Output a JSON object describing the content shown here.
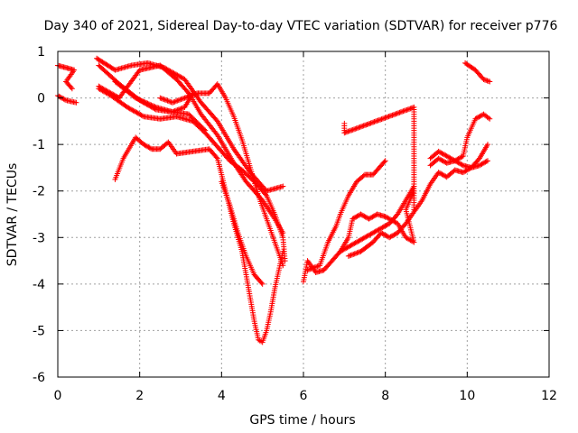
{
  "chart_data": {
    "type": "scatter",
    "title": "Day 340 of 2021, Sidereal Day-to-day VTEC variation (SDTVAR) for receiver p776",
    "xlabel": "GPS time / hours",
    "ylabel": "SDTVAR / TECUs",
    "xlim": [
      0,
      12
    ],
    "ylim": [
      -6,
      1
    ],
    "xticks": [
      0,
      2,
      4,
      6,
      8,
      10,
      12
    ],
    "yticks": [
      -6,
      -5,
      -4,
      -3,
      -2,
      -1,
      0,
      1
    ],
    "grid": true,
    "marker": "plus",
    "color": "#ff0000",
    "tracks": [
      [
        [
          0.0,
          0.7
        ],
        [
          0.2,
          0.65
        ],
        [
          0.4,
          0.6
        ],
        [
          0.2,
          0.35
        ],
        [
          0.35,
          0.2
        ]
      ],
      [
        [
          0.0,
          0.05
        ],
        [
          0.2,
          -0.05
        ],
        [
          0.45,
          -0.1
        ]
      ],
      [
        [
          0.95,
          0.85
        ],
        [
          1.4,
          0.6
        ],
        [
          1.8,
          0.7
        ],
        [
          2.2,
          0.75
        ],
        [
          2.6,
          0.65
        ],
        [
          3.1,
          0.4
        ],
        [
          3.5,
          -0.1
        ],
        [
          3.9,
          -0.5
        ],
        [
          4.3,
          -1.1
        ],
        [
          4.7,
          -1.6
        ],
        [
          5.1,
          -2.0
        ],
        [
          5.5,
          -1.9
        ]
      ],
      [
        [
          1.0,
          0.25
        ],
        [
          1.5,
          0.0
        ],
        [
          2.0,
          0.6
        ],
        [
          2.5,
          0.7
        ],
        [
          2.9,
          0.4
        ],
        [
          3.2,
          0.1
        ],
        [
          3.5,
          -0.35
        ],
        [
          3.9,
          -0.8
        ],
        [
          4.3,
          -1.4
        ],
        [
          4.6,
          -1.8
        ],
        [
          5.0,
          -2.2
        ],
        [
          5.3,
          -2.6
        ],
        [
          5.5,
          -2.9
        ]
      ],
      [
        [
          1.0,
          0.2
        ],
        [
          1.3,
          0.05
        ],
        [
          1.7,
          -0.2
        ],
        [
          2.1,
          -0.4
        ],
        [
          2.5,
          -0.45
        ],
        [
          2.9,
          -0.4
        ],
        [
          3.3,
          -0.5
        ],
        [
          3.6,
          -0.75
        ],
        [
          3.9,
          -1.05
        ],
        [
          4.2,
          -1.35
        ],
        [
          4.5,
          -1.55
        ],
        [
          4.8,
          -1.8
        ],
        [
          5.1,
          -2.1
        ],
        [
          5.3,
          -2.5
        ],
        [
          5.5,
          -3.0
        ],
        [
          5.55,
          -3.5
        ]
      ],
      [
        [
          1.0,
          0.7
        ],
        [
          1.5,
          0.3
        ],
        [
          2.0,
          -0.05
        ],
        [
          2.4,
          -0.25
        ],
        [
          2.8,
          -0.3
        ],
        [
          3.2,
          -0.35
        ],
        [
          3.6,
          -0.7
        ]
      ],
      [
        [
          1.4,
          0.35
        ],
        [
          1.9,
          0.0
        ],
        [
          2.4,
          -0.2
        ],
        [
          2.8,
          -0.3
        ],
        [
          3.1,
          -0.2
        ],
        [
          3.3,
          0.1
        ]
      ],
      [
        [
          2.5,
          0.0
        ],
        [
          2.8,
          -0.1
        ],
        [
          3.1,
          0.0
        ],
        [
          3.4,
          0.1
        ],
        [
          3.7,
          0.1
        ],
        [
          3.9,
          0.3
        ],
        [
          4.1,
          0.0
        ],
        [
          4.3,
          -0.4
        ],
        [
          4.5,
          -0.9
        ],
        [
          4.7,
          -1.5
        ],
        [
          4.9,
          -2.1
        ],
        [
          5.1,
          -2.6
        ],
        [
          5.3,
          -3.1
        ],
        [
          5.5,
          -3.6
        ]
      ],
      [
        [
          1.4,
          -1.75
        ],
        [
          1.6,
          -1.3
        ],
        [
          1.9,
          -0.85
        ],
        [
          2.1,
          -1.0
        ],
        [
          2.3,
          -1.1
        ],
        [
          2.5,
          -1.1
        ],
        [
          2.7,
          -0.95
        ],
        [
          2.9,
          -1.2
        ],
        [
          3.3,
          -1.15
        ],
        [
          3.7,
          -1.1
        ],
        [
          3.9,
          -1.3
        ],
        [
          4.1,
          -2.0
        ],
        [
          4.3,
          -2.7
        ],
        [
          4.5,
          -3.3
        ],
        [
          4.6,
          -3.8
        ],
        [
          4.7,
          -4.3
        ],
        [
          4.8,
          -4.8
        ],
        [
          4.9,
          -5.2
        ],
        [
          5.0,
          -5.25
        ],
        [
          5.1,
          -5.0
        ],
        [
          5.2,
          -4.6
        ],
        [
          5.3,
          -4.1
        ],
        [
          5.4,
          -3.7
        ],
        [
          5.5,
          -3.3
        ]
      ],
      [
        [
          4.0,
          -1.8
        ],
        [
          4.2,
          -2.3
        ],
        [
          4.4,
          -2.9
        ],
        [
          4.6,
          -3.4
        ],
        [
          4.8,
          -3.8
        ],
        [
          5.0,
          -4.0
        ]
      ],
      [
        [
          6.0,
          -3.95
        ],
        [
          6.1,
          -3.5
        ],
        [
          6.3,
          -3.75
        ],
        [
          6.5,
          -3.7
        ],
        [
          6.7,
          -3.5
        ],
        [
          6.9,
          -3.3
        ],
        [
          7.1,
          -3.2
        ],
        [
          7.3,
          -3.1
        ],
        [
          7.5,
          -3.0
        ],
        [
          7.7,
          -2.9
        ],
        [
          7.9,
          -2.8
        ],
        [
          8.1,
          -2.7
        ],
        [
          8.3,
          -2.5
        ],
        [
          8.5,
          -2.2
        ],
        [
          8.7,
          -1.9
        ]
      ],
      [
        [
          6.1,
          -3.7
        ],
        [
          6.4,
          -3.6
        ],
        [
          6.6,
          -3.1
        ],
        [
          6.8,
          -2.75
        ],
        [
          6.9,
          -2.5
        ],
        [
          7.1,
          -2.1
        ],
        [
          7.3,
          -1.8
        ],
        [
          7.5,
          -1.65
        ],
        [
          7.7,
          -1.65
        ],
        [
          7.9,
          -1.45
        ],
        [
          8.0,
          -1.35
        ]
      ],
      [
        [
          6.9,
          -3.3
        ],
        [
          7.1,
          -3.0
        ],
        [
          7.2,
          -2.6
        ],
        [
          7.4,
          -2.5
        ],
        [
          7.6,
          -2.6
        ],
        [
          7.8,
          -2.5
        ],
        [
          8.0,
          -2.55
        ],
        [
          8.3,
          -2.7
        ],
        [
          8.5,
          -3.0
        ],
        [
          8.7,
          -3.1
        ],
        [
          8.5,
          -2.4
        ],
        [
          8.7,
          -2.0
        ]
      ],
      [
        [
          7.1,
          -3.4
        ],
        [
          7.4,
          -3.3
        ],
        [
          7.7,
          -3.1
        ],
        [
          7.9,
          -2.9
        ],
        [
          8.1,
          -3.0
        ],
        [
          8.3,
          -2.9
        ],
        [
          8.5,
          -2.7
        ],
        [
          8.7,
          -2.45
        ],
        [
          8.9,
          -2.2
        ],
        [
          9.1,
          -1.85
        ],
        [
          9.3,
          -1.6
        ],
        [
          9.5,
          -1.7
        ],
        [
          9.7,
          -1.55
        ],
        [
          9.9,
          -1.6
        ],
        [
          10.1,
          -1.5
        ],
        [
          10.3,
          -1.45
        ],
        [
          10.5,
          -1.35
        ]
      ],
      [
        [
          9.1,
          -1.45
        ],
        [
          9.3,
          -1.3
        ],
        [
          9.5,
          -1.4
        ],
        [
          9.7,
          -1.35
        ],
        [
          9.9,
          -1.25
        ],
        [
          10.0,
          -0.85
        ],
        [
          10.2,
          -0.45
        ],
        [
          10.4,
          -0.35
        ],
        [
          10.55,
          -0.45
        ]
      ],
      [
        [
          9.1,
          -1.3
        ],
        [
          9.3,
          -1.15
        ],
        [
          9.5,
          -1.25
        ],
        [
          9.7,
          -1.35
        ],
        [
          9.9,
          -1.45
        ],
        [
          10.1,
          -1.5
        ],
        [
          10.3,
          -1.3
        ],
        [
          10.5,
          -1.0
        ]
      ],
      [
        [
          9.95,
          0.75
        ],
        [
          10.2,
          0.6
        ],
        [
          10.4,
          0.4
        ],
        [
          10.55,
          0.35
        ]
      ],
      [
        [
          7.0,
          -0.55
        ],
        [
          7.0,
          -0.75
        ],
        [
          8.7,
          -0.2
        ],
        [
          8.7,
          -0.4
        ],
        [
          8.7,
          -1.4
        ],
        [
          8.7,
          -2.4
        ]
      ]
    ]
  }
}
